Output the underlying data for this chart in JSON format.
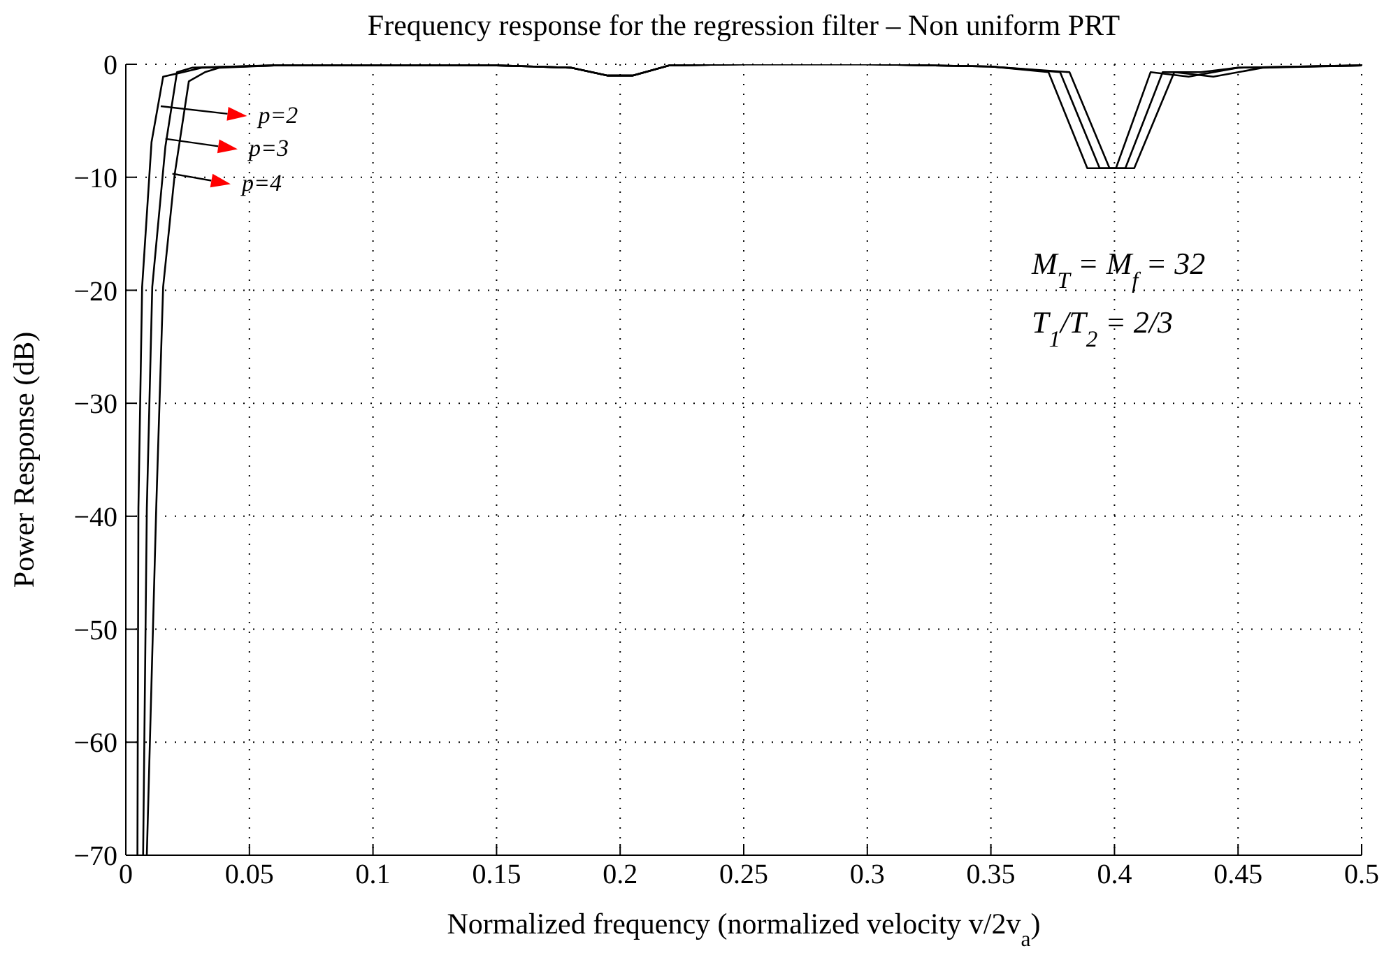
{
  "chart_data": {
    "type": "line",
    "title": "Frequency response for the regression filter – Non uniform PRT",
    "xlabel": "Normalized frequency (normalized velocity v/2v$_{a}$)",
    "ylabel": "Power Response (dB)",
    "xlim": [
      0,
      0.5
    ],
    "xticks": [
      0,
      0.05,
      0.1,
      0.15,
      0.2,
      0.25,
      0.3,
      0.35,
      0.4,
      0.45,
      0.5
    ],
    "ylim": [
      -70,
      0
    ],
    "yticks": [
      {
        "value": -70,
        "label": "−70"
      },
      {
        "value": -60,
        "label": "−60"
      },
      {
        "value": -50,
        "label": "−50"
      },
      {
        "value": -40,
        "label": "−40"
      },
      {
        "value": -30,
        "label": "−30"
      },
      {
        "value": -20,
        "label": "−20"
      },
      {
        "value": -10,
        "label": "−10"
      },
      0
    ],
    "grid": true,
    "marker": "none",
    "line_style": "solid",
    "series": [
      {
        "color": "#000000",
        "x": [
          0.0047,
          0.0051,
          0.0066,
          0.0104,
          0.0151,
          0.031,
          0.06,
          0.1,
          0.15,
          0.18,
          0.195,
          0.205,
          0.22,
          0.25,
          0.3,
          0.35,
          0.3733,
          0.389,
          0.4006,
          0.4146,
          0.43,
          0.45,
          0.5
        ],
        "values": [
          -70,
          -39.3,
          -19.7,
          -6.9,
          -1.1,
          -0.3,
          -0.1,
          -0.1,
          -0.1,
          -0.3,
          -1.0,
          -1.0,
          -0.1,
          0,
          0,
          -0.2,
          -0.7,
          -9.2,
          -9.2,
          -0.7,
          -1.1,
          -0.3,
          -0.1
        ]
      },
      {
        "color": "#000000",
        "x": [
          0.007,
          0.0085,
          0.0107,
          0.016,
          0.0207,
          0.027,
          0.06,
          0.1,
          0.15,
          0.18,
          0.195,
          0.205,
          0.22,
          0.25,
          0.3,
          0.35,
          0.378,
          0.394,
          0.4044,
          0.4195,
          0.435,
          0.45,
          0.5
        ],
        "values": [
          -70,
          -39.3,
          -19.7,
          -7.3,
          -0.7,
          -0.3,
          -0.1,
          -0.1,
          -0.1,
          -0.3,
          -1.0,
          -1.0,
          -0.1,
          0,
          0,
          -0.2,
          -0.7,
          -9.2,
          -9.2,
          -0.7,
          -0.7,
          -0.3,
          -0.1
        ]
      },
      {
        "color": "#000000",
        "x": [
          0.0085,
          0.0123,
          0.0151,
          0.0198,
          0.0255,
          0.032,
          0.038,
          0.06,
          0.1,
          0.15,
          0.18,
          0.195,
          0.205,
          0.22,
          0.25,
          0.3,
          0.35,
          0.3818,
          0.398,
          0.408,
          0.4242,
          0.44,
          0.46,
          0.5
        ],
        "values": [
          -70,
          -39.3,
          -19.7,
          -9.7,
          -1.5,
          -0.7,
          -0.3,
          -0.1,
          -0.1,
          -0.1,
          -0.3,
          -1.0,
          -1.0,
          -0.1,
          0,
          0,
          -0.2,
          -0.7,
          -9.2,
          -9.2,
          -0.7,
          -1.1,
          -0.3,
          -0.1
        ]
      }
    ],
    "annotations": [
      "p=2",
      "p=3",
      "p=4",
      "M$_{T}$ = M$_{f}$ = 32",
      "T$_{1}$/T$_{2}$ = 2/3"
    ]
  }
}
